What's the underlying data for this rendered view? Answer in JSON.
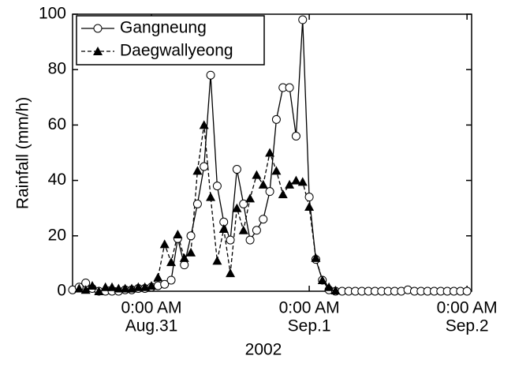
{
  "chart_data": {
    "type": "line",
    "x_label": "2002",
    "y_label": "Rainfall (mm/h)",
    "x": [
      -12,
      -11,
      -10,
      -9,
      -8,
      -7,
      -6,
      -5,
      -4,
      -3,
      -2,
      -1,
      0,
      1,
      2,
      3,
      4,
      5,
      6,
      7,
      8,
      9,
      10,
      11,
      12,
      13,
      14,
      15,
      16,
      17,
      18,
      19,
      20,
      21,
      22,
      23,
      24,
      25,
      26,
      27,
      28,
      29,
      30,
      31,
      32,
      33,
      34,
      35,
      36,
      37,
      38,
      39,
      40,
      41,
      42,
      43,
      44,
      45,
      46,
      47,
      48
    ],
    "series": [
      {
        "name": "Gangneung",
        "color": "#000000",
        "marker": "circle",
        "line_style": "solid",
        "values": [
          0.5,
          1.5,
          3,
          1,
          0,
          0,
          0,
          0,
          0.5,
          0.5,
          1,
          1,
          1.5,
          2,
          2.5,
          4,
          19,
          9.5,
          20,
          31.5,
          45,
          78,
          38,
          25,
          18.5,
          44,
          31.5,
          18.5,
          22,
          26,
          36,
          62,
          73.5,
          73.5,
          56,
          98,
          34,
          11.5,
          4,
          0.5,
          0,
          0,
          0,
          0,
          0,
          0,
          0,
          0,
          0,
          0,
          0,
          0.5,
          0,
          0,
          0,
          0,
          0,
          0,
          0,
          0,
          0
        ]
      },
      {
        "name": "Daegwallyeong",
        "color": "#000000",
        "marker": "triangle",
        "line_style": "dashed",
        "values": [
          null,
          1,
          0.5,
          2,
          0,
          1.5,
          1.5,
          1,
          1,
          1,
          1.5,
          1.5,
          2,
          5,
          17,
          10.5,
          20.5,
          12,
          14,
          43.5,
          60,
          34,
          11,
          22.5,
          6.5,
          30,
          22,
          33.5,
          42,
          38.5,
          50,
          43.5,
          35,
          38.5,
          40,
          39.5,
          30.5,
          12,
          4,
          1.5,
          0.3,
          null,
          null,
          null,
          null,
          null,
          null,
          null,
          null,
          null,
          null,
          null,
          null,
          null,
          null,
          null,
          null,
          null,
          null,
          null,
          null
        ]
      }
    ],
    "xlim": [
      -12,
      48.7
    ],
    "xticks": [
      {
        "value": 0,
        "label": "0:00 AM"
      },
      {
        "value": 24,
        "label": "0:00 AM"
      },
      {
        "value": 48,
        "label": "0:00 AM"
      }
    ],
    "xtick_dates": [
      "Aug.31",
      "Sep.1",
      "Sep.2"
    ],
    "ylim": [
      0,
      100
    ],
    "yticks": [
      0,
      20,
      40,
      60,
      80,
      100
    ],
    "legend": "upper left"
  }
}
